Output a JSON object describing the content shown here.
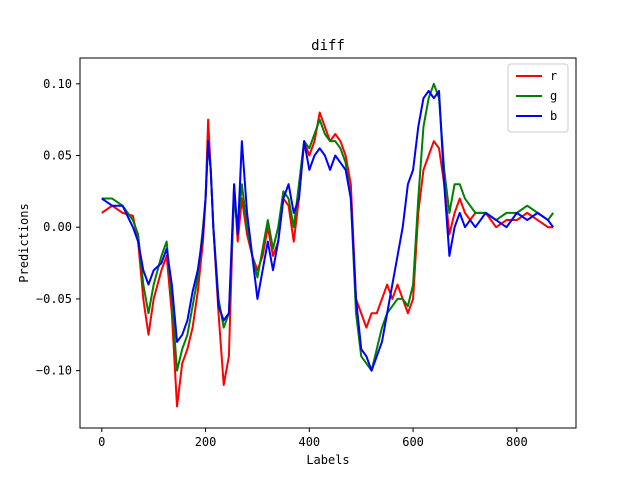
{
  "chart_data": {
    "type": "line",
    "title": "diff",
    "xlabel": "Labels",
    "ylabel": "Predictions",
    "xlim": [
      -42,
      914
    ],
    "ylim": [
      -0.14,
      0.118
    ],
    "xticks": [
      0,
      200,
      400,
      600,
      800
    ],
    "yticks": [
      -0.1,
      -0.05,
      0.0,
      0.05,
      0.1
    ],
    "xtick_labels": [
      "0",
      "200",
      "400",
      "600",
      "800"
    ],
    "ytick_labels": [
      "−0.10",
      "−0.05",
      "0.00",
      "0.05",
      "0.10"
    ],
    "grid": false,
    "legend_position": "top-right",
    "series": [
      {
        "name": "r",
        "color": "#ff0000",
        "points": [
          [
            0,
            0.01
          ],
          [
            20,
            0.015
          ],
          [
            40,
            0.01
          ],
          [
            60,
            0.008
          ],
          [
            70,
            -0.01
          ],
          [
            80,
            -0.05
          ],
          [
            90,
            -0.075
          ],
          [
            100,
            -0.05
          ],
          [
            115,
            -0.03
          ],
          [
            125,
            -0.02
          ],
          [
            135,
            -0.06
          ],
          [
            145,
            -0.125
          ],
          [
            155,
            -0.095
          ],
          [
            165,
            -0.085
          ],
          [
            175,
            -0.07
          ],
          [
            185,
            -0.045
          ],
          [
            195,
            -0.01
          ],
          [
            200,
            0.02
          ],
          [
            205,
            0.075
          ],
          [
            210,
            0.04
          ],
          [
            215,
            0.0
          ],
          [
            225,
            -0.06
          ],
          [
            235,
            -0.11
          ],
          [
            245,
            -0.09
          ],
          [
            255,
            0.03
          ],
          [
            262,
            -0.01
          ],
          [
            270,
            0.02
          ],
          [
            280,
            -0.005
          ],
          [
            290,
            -0.02
          ],
          [
            300,
            -0.03
          ],
          [
            310,
            -0.02
          ],
          [
            320,
            0.0
          ],
          [
            330,
            -0.02
          ],
          [
            340,
            -0.01
          ],
          [
            350,
            0.02
          ],
          [
            360,
            0.015
          ],
          [
            370,
            -0.01
          ],
          [
            380,
            0.02
          ],
          [
            390,
            0.06
          ],
          [
            400,
            0.05
          ],
          [
            410,
            0.06
          ],
          [
            420,
            0.08
          ],
          [
            430,
            0.07
          ],
          [
            440,
            0.06
          ],
          [
            450,
            0.065
          ],
          [
            460,
            0.06
          ],
          [
            470,
            0.05
          ],
          [
            480,
            0.03
          ],
          [
            490,
            -0.05
          ],
          [
            500,
            -0.06
          ],
          [
            510,
            -0.07
          ],
          [
            520,
            -0.06
          ],
          [
            530,
            -0.06
          ],
          [
            540,
            -0.05
          ],
          [
            550,
            -0.04
          ],
          [
            560,
            -0.05
          ],
          [
            570,
            -0.04
          ],
          [
            580,
            -0.05
          ],
          [
            590,
            -0.06
          ],
          [
            600,
            -0.05
          ],
          [
            610,
            0.01
          ],
          [
            620,
            0.04
          ],
          [
            630,
            0.05
          ],
          [
            640,
            0.06
          ],
          [
            650,
            0.055
          ],
          [
            660,
            0.03
          ],
          [
            670,
            -0.005
          ],
          [
            680,
            0.01
          ],
          [
            690,
            0.02
          ],
          [
            700,
            0.01
          ],
          [
            710,
            0.005
          ],
          [
            720,
            0.01
          ],
          [
            740,
            0.01
          ],
          [
            760,
            0.0
          ],
          [
            780,
            0.005
          ],
          [
            800,
            0.005
          ],
          [
            820,
            0.01
          ],
          [
            840,
            0.005
          ],
          [
            860,
            0.0
          ],
          [
            870,
            0.0
          ]
        ]
      },
      {
        "name": "g",
        "color": "#008000",
        "points": [
          [
            0,
            0.02
          ],
          [
            20,
            0.02
          ],
          [
            40,
            0.015
          ],
          [
            60,
            0.005
          ],
          [
            70,
            -0.005
          ],
          [
            80,
            -0.04
          ],
          [
            90,
            -0.06
          ],
          [
            100,
            -0.04
          ],
          [
            115,
            -0.02
          ],
          [
            125,
            -0.01
          ],
          [
            135,
            -0.05
          ],
          [
            145,
            -0.1
          ],
          [
            155,
            -0.085
          ],
          [
            165,
            -0.075
          ],
          [
            175,
            -0.055
          ],
          [
            185,
            -0.035
          ],
          [
            195,
            0.0
          ],
          [
            200,
            0.02
          ],
          [
            205,
            0.06
          ],
          [
            210,
            0.04
          ],
          [
            215,
            0.0
          ],
          [
            225,
            -0.05
          ],
          [
            235,
            -0.07
          ],
          [
            245,
            -0.06
          ],
          [
            255,
            0.02
          ],
          [
            262,
            0.0
          ],
          [
            270,
            0.03
          ],
          [
            280,
            0.0
          ],
          [
            290,
            -0.02
          ],
          [
            300,
            -0.035
          ],
          [
            310,
            -0.015
          ],
          [
            320,
            0.005
          ],
          [
            330,
            -0.015
          ],
          [
            340,
            0.0
          ],
          [
            350,
            0.025
          ],
          [
            360,
            0.02
          ],
          [
            370,
            0.0
          ],
          [
            380,
            0.03
          ],
          [
            390,
            0.06
          ],
          [
            400,
            0.055
          ],
          [
            410,
            0.065
          ],
          [
            420,
            0.075
          ],
          [
            430,
            0.065
          ],
          [
            440,
            0.06
          ],
          [
            450,
            0.06
          ],
          [
            460,
            0.055
          ],
          [
            470,
            0.045
          ],
          [
            480,
            0.02
          ],
          [
            490,
            -0.06
          ],
          [
            500,
            -0.09
          ],
          [
            510,
            -0.095
          ],
          [
            520,
            -0.1
          ],
          [
            530,
            -0.085
          ],
          [
            540,
            -0.07
          ],
          [
            550,
            -0.06
          ],
          [
            560,
            -0.055
          ],
          [
            570,
            -0.05
          ],
          [
            580,
            -0.05
          ],
          [
            590,
            -0.055
          ],
          [
            600,
            -0.04
          ],
          [
            610,
            0.02
          ],
          [
            620,
            0.07
          ],
          [
            630,
            0.09
          ],
          [
            640,
            0.1
          ],
          [
            650,
            0.09
          ],
          [
            660,
            0.04
          ],
          [
            670,
            0.01
          ],
          [
            680,
            0.03
          ],
          [
            690,
            0.03
          ],
          [
            700,
            0.02
          ],
          [
            710,
            0.015
          ],
          [
            720,
            0.01
          ],
          [
            740,
            0.01
          ],
          [
            760,
            0.005
          ],
          [
            780,
            0.01
          ],
          [
            800,
            0.01
          ],
          [
            820,
            0.015
          ],
          [
            840,
            0.01
          ],
          [
            860,
            0.005
          ],
          [
            870,
            0.01
          ]
        ]
      },
      {
        "name": "b",
        "color": "#0000ff",
        "points": [
          [
            0,
            0.02
          ],
          [
            20,
            0.015
          ],
          [
            40,
            0.015
          ],
          [
            60,
            0.0
          ],
          [
            70,
            -0.01
          ],
          [
            80,
            -0.03
          ],
          [
            90,
            -0.04
          ],
          [
            100,
            -0.03
          ],
          [
            115,
            -0.025
          ],
          [
            125,
            -0.015
          ],
          [
            135,
            -0.04
          ],
          [
            145,
            -0.08
          ],
          [
            155,
            -0.075
          ],
          [
            165,
            -0.065
          ],
          [
            175,
            -0.045
          ],
          [
            185,
            -0.03
          ],
          [
            195,
            -0.005
          ],
          [
            200,
            0.02
          ],
          [
            205,
            0.06
          ],
          [
            210,
            0.04
          ],
          [
            215,
            0.0
          ],
          [
            225,
            -0.055
          ],
          [
            235,
            -0.065
          ],
          [
            245,
            -0.06
          ],
          [
            255,
            0.03
          ],
          [
            262,
            -0.005
          ],
          [
            270,
            0.06
          ],
          [
            280,
            0.01
          ],
          [
            290,
            -0.02
          ],
          [
            300,
            -0.05
          ],
          [
            310,
            -0.03
          ],
          [
            320,
            -0.01
          ],
          [
            330,
            -0.03
          ],
          [
            340,
            -0.01
          ],
          [
            350,
            0.02
          ],
          [
            360,
            0.03
          ],
          [
            370,
            0.01
          ],
          [
            380,
            0.02
          ],
          [
            390,
            0.06
          ],
          [
            400,
            0.04
          ],
          [
            410,
            0.05
          ],
          [
            420,
            0.055
          ],
          [
            430,
            0.05
          ],
          [
            440,
            0.04
          ],
          [
            450,
            0.05
          ],
          [
            460,
            0.045
          ],
          [
            470,
            0.04
          ],
          [
            480,
            0.02
          ],
          [
            490,
            -0.05
          ],
          [
            500,
            -0.085
          ],
          [
            510,
            -0.09
          ],
          [
            520,
            -0.1
          ],
          [
            530,
            -0.09
          ],
          [
            540,
            -0.08
          ],
          [
            550,
            -0.06
          ],
          [
            560,
            -0.04
          ],
          [
            570,
            -0.02
          ],
          [
            580,
            0.0
          ],
          [
            590,
            0.03
          ],
          [
            600,
            0.04
          ],
          [
            610,
            0.07
          ],
          [
            620,
            0.09
          ],
          [
            630,
            0.095
          ],
          [
            640,
            0.09
          ],
          [
            650,
            0.095
          ],
          [
            660,
            0.03
          ],
          [
            670,
            -0.02
          ],
          [
            680,
            0.0
          ],
          [
            690,
            0.01
          ],
          [
            700,
            0.0
          ],
          [
            710,
            0.005
          ],
          [
            720,
            0.0
          ],
          [
            740,
            0.01
          ],
          [
            760,
            0.005
          ],
          [
            780,
            0.0
          ],
          [
            800,
            0.01
          ],
          [
            820,
            0.005
          ],
          [
            840,
            0.01
          ],
          [
            860,
            0.005
          ],
          [
            870,
            0.0
          ]
        ]
      }
    ]
  }
}
